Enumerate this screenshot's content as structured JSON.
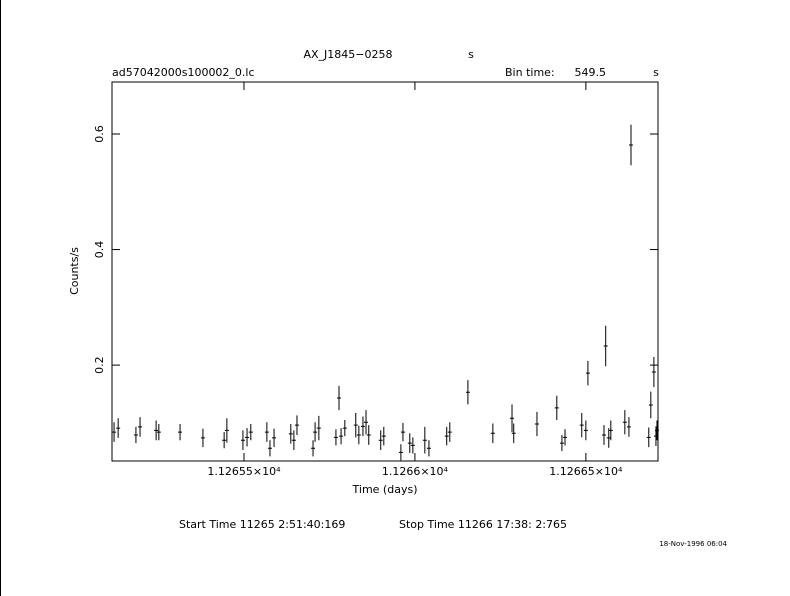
{
  "chart_data": {
    "type": "scatter",
    "title": "AX_J1845−0258",
    "title_units": "s",
    "file_name": "ad57042000s100002_0.lc",
    "bin_time_label": "Bin time:",
    "bin_time": 549.5,
    "bin_time_units": "s",
    "x_label": "Time (days)",
    "y_label": "Counts/s",
    "start_time": "Start Time 11265  2:51:40:169",
    "stop_time": "Stop Time 11266 17:38: 2:765",
    "date": "18-Nov-1996 06:04",
    "xlim": [
      11265.114,
      11266.711
    ],
    "ylim": [
      0.034,
      0.69
    ],
    "xticks": [
      {
        "value": 11265.5,
        "label": "1.12655×10⁴"
      },
      {
        "value": 11266.0,
        "label": "1.1266×10⁴"
      },
      {
        "value": 11266.5,
        "label": "1.12665×10⁴"
      }
    ],
    "yticks": [
      0.2,
      0.4,
      0.6
    ],
    "x": [
      11265.12,
      11265.132,
      11265.184,
      11265.196,
      11265.243,
      11265.251,
      11265.313,
      11265.38,
      11265.442,
      11265.45,
      11265.497,
      11265.509,
      11265.52,
      11265.567,
      11265.576,
      11265.588,
      11265.637,
      11265.646,
      11265.655,
      11265.702,
      11265.708,
      11265.719,
      11265.769,
      11265.778,
      11265.784,
      11265.795,
      11265.827,
      11265.836,
      11265.848,
      11265.857,
      11265.865,
      11265.9,
      11265.909,
      11265.959,
      11265.965,
      11265.985,
      11265.994,
      11266.029,
      11266.041,
      11266.093,
      11266.102,
      11266.155,
      11266.228,
      11266.284,
      11266.289,
      11266.357,
      11266.415,
      11266.43,
      11266.439,
      11266.488,
      11266.5,
      11266.506,
      11266.553,
      11266.558,
      11266.567,
      11266.573,
      11266.614,
      11266.626,
      11266.632,
      11266.684,
      11266.69,
      11266.699,
      11266.705,
      11266.708
    ],
    "series": [
      {
        "color": "#000000",
        "values": [
          0.084,
          0.091,
          0.079,
          0.093,
          0.087,
          0.084,
          0.084,
          0.074,
          0.07,
          0.087,
          0.07,
          0.075,
          0.084,
          0.084,
          0.056,
          0.074,
          0.081,
          0.07,
          0.096,
          0.056,
          0.084,
          0.091,
          0.075,
          0.143,
          0.077,
          0.091,
          0.096,
          0.079,
          0.094,
          0.101,
          0.079,
          0.07,
          0.077,
          0.049,
          0.084,
          0.065,
          0.061,
          0.07,
          0.056,
          0.077,
          0.084,
          0.153,
          0.082,
          0.108,
          0.082,
          0.098,
          0.126,
          0.065,
          0.075,
          0.096,
          0.087,
          0.186,
          0.079,
          0.233,
          0.074,
          0.087,
          0.101,
          0.093,
          0.581,
          0.075,
          0.131,
          0.188,
          0.077,
          0.087
        ],
        "errors": [
          0.017,
          0.017,
          0.014,
          0.017,
          0.017,
          0.014,
          0.014,
          0.016,
          0.014,
          0.021,
          0.017,
          0.016,
          0.014,
          0.017,
          0.014,
          0.016,
          0.017,
          0.017,
          0.017,
          0.014,
          0.017,
          0.021,
          0.014,
          0.021,
          0.014,
          0.014,
          0.021,
          0.016,
          0.017,
          0.021,
          0.017,
          0.017,
          0.016,
          0.014,
          0.016,
          0.017,
          0.014,
          0.023,
          0.014,
          0.016,
          0.017,
          0.021,
          0.017,
          0.024,
          0.017,
          0.021,
          0.021,
          0.014,
          0.014,
          0.021,
          0.017,
          0.021,
          0.017,
          0.035,
          0.017,
          0.017,
          0.021,
          0.017,
          0.035,
          0.017,
          0.023,
          0.026,
          0.017,
          0.017
        ]
      }
    ]
  }
}
